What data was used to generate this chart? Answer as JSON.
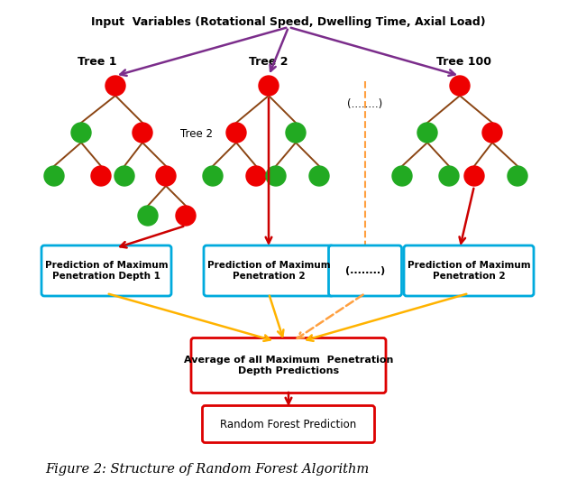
{
  "title": "Input  Variables (Rotational Speed, Dwelling Time, Axial Load)",
  "bg_color": "#ffffff",
  "node_red": "#ee0000",
  "node_green": "#22aa22",
  "edge_brown": "#8B4513",
  "arrow_red": "#cc0000",
  "arrow_purple": "#7B2D8B",
  "arrow_yellow": "#FFB300",
  "arrow_orange_dashed": "#FFA040",
  "box_border_blue": "#00AADD",
  "box_border_red": "#dd0000",
  "tree1_label": "Tree 1",
  "tree2_label": "Tree 2",
  "tree2b_label": "Tree 2",
  "tree100_label": "Tree 100",
  "dots_label": "(........)",
  "box1_text": "Prediction of Maximum\nPenetration Depth 1",
  "box2_text": "Prediction of Maximum\nPenetration 2",
  "box3_text": "(........)",
  "box4_text": "Prediction of Maximum\nPenetration 2",
  "avg_box_text": "Average of all Maximum  Penetration\nDepth Predictions",
  "rf_box_text": "Random Forest Prediction",
  "caption": "Figure 2: Structure of Random Forest Algorithm"
}
